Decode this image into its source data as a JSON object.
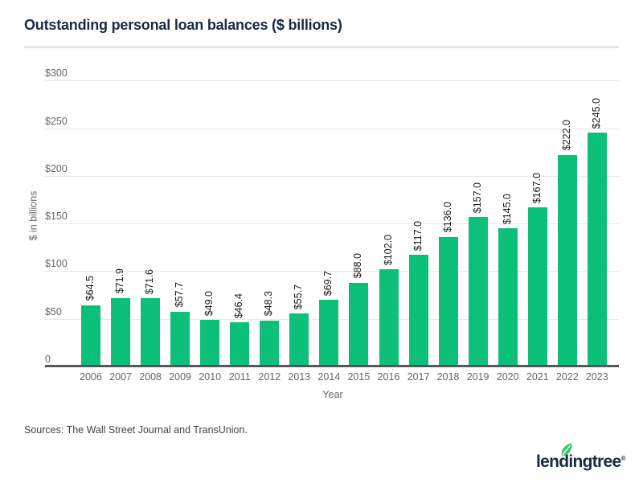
{
  "title": "Outstanding personal loan balances ($ billions)",
  "chart_data": {
    "type": "bar",
    "title": "Outstanding personal loan balances ($ billions)",
    "xlabel": "Year",
    "ylabel": "$ in billions",
    "categories": [
      "2006",
      "2007",
      "2008",
      "2009",
      "2010",
      "2011",
      "2012",
      "2013",
      "2014",
      "2015",
      "2016",
      "2017",
      "2018",
      "2019",
      "2020",
      "2021",
      "2022",
      "2023"
    ],
    "values": [
      64.5,
      71.9,
      71.6,
      57.7,
      49.0,
      46.4,
      48.3,
      55.7,
      69.7,
      88.0,
      102.0,
      117.0,
      136.0,
      157.0,
      145.0,
      167.0,
      222.0,
      245.0
    ],
    "bar_labels": [
      "$64.5",
      "$71.9",
      "$71.6",
      "$57.7",
      "$49.0",
      "$46.4",
      "$48.3",
      "$55.7",
      "$69.7",
      "$88.0",
      "$102.0",
      "$117.0",
      "$136.0",
      "$157.0",
      "$145.0",
      "$167.0",
      "$222.0",
      "$245.0"
    ],
    "y_ticks": [
      {
        "value": 0,
        "label": "0"
      },
      {
        "value": 50,
        "label": "$50"
      },
      {
        "value": 100,
        "label": "$100"
      },
      {
        "value": 150,
        "label": "$150"
      },
      {
        "value": 200,
        "label": "$200"
      },
      {
        "value": 250,
        "label": "$250"
      },
      {
        "value": 300,
        "label": "$300"
      }
    ],
    "ylim": [
      0,
      300
    ],
    "grid": true,
    "legend": "none",
    "bar_color": "#0cc07a"
  },
  "colors": {
    "bar_green": "#0cc07a",
    "brand_navy": "#1b2a41",
    "gridline": "#e7e7e7",
    "axis_line": "#55565a",
    "tick_label": "#666666",
    "value_label": "#1a1a1a",
    "leaf_green": "#2bc76a"
  },
  "footer": {
    "sources": "Sources: The Wall Street Journal and TransUnion.",
    "logo_text": "lendingtree",
    "logo_registered": "®"
  }
}
